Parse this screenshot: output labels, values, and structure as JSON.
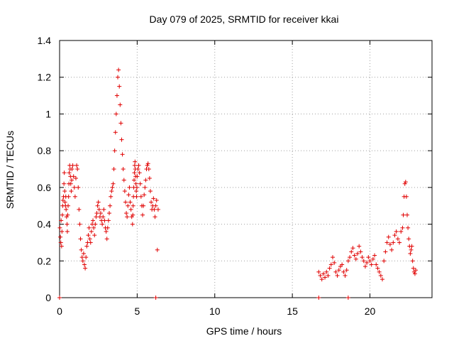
{
  "chart_data": {
    "type": "scatter",
    "title": "Day 079 of 2025, SRMTID for receiver kkai",
    "xlabel": "GPS time / hours",
    "ylabel": "SRMTID / TECUs",
    "xlim": [
      0,
      24
    ],
    "ylim": [
      0,
      1.4
    ],
    "xticks": [
      0,
      5,
      10,
      15,
      20
    ],
    "xtick_labels": [
      "0",
      "5",
      "10",
      "15",
      "20"
    ],
    "yticks": [
      0,
      0.2,
      0.4,
      0.6,
      0.8,
      1.0,
      1.2,
      1.4
    ],
    "ytick_labels": [
      "0",
      "0.2",
      "0.4",
      "0.6",
      "0.8",
      "1",
      "1.2",
      "1.4"
    ],
    "grid": true,
    "marker": "+",
    "color": "#e00000",
    "series": [
      {
        "name": "SRMTID",
        "x": [
          0.02,
          0.05,
          0.08,
          0.1,
          0.13,
          0.15,
          0.18,
          0.2,
          0.22,
          0.25,
          0.28,
          0.3,
          0.33,
          0.35,
          0.38,
          0.4,
          0.42,
          0.45,
          0.48,
          0.5,
          0.52,
          0.55,
          0.58,
          0.6,
          0.62,
          0.65,
          0.68,
          0.7,
          0.72,
          0.75,
          0.78,
          0.8,
          0.85,
          0.9,
          0.95,
          1.0,
          1.05,
          1.1,
          1.15,
          1.2,
          1.25,
          1.3,
          1.35,
          1.4,
          1.45,
          1.5,
          1.55,
          1.6,
          1.65,
          1.7,
          1.75,
          1.8,
          1.85,
          1.9,
          1.95,
          2.0,
          2.05,
          2.1,
          2.15,
          2.2,
          2.25,
          2.3,
          2.35,
          2.4,
          2.45,
          2.5,
          2.55,
          2.6,
          2.65,
          2.7,
          2.75,
          2.8,
          2.85,
          2.9,
          2.95,
          3.0,
          3.05,
          3.1,
          3.15,
          3.2,
          3.25,
          3.3,
          3.35,
          3.4,
          3.45,
          3.5,
          3.55,
          3.6,
          3.65,
          3.7,
          3.75,
          3.8,
          3.85,
          3.9,
          3.95,
          4.0,
          4.05,
          4.1,
          4.15,
          4.2,
          4.25,
          4.3,
          4.35,
          4.4,
          4.45,
          4.5,
          4.55,
          4.6,
          4.65,
          4.7,
          4.72,
          4.74,
          4.76,
          4.78,
          4.8,
          4.82,
          4.84,
          4.86,
          4.88,
          4.9,
          4.92,
          4.94,
          4.96,
          4.98,
          5.0,
          5.05,
          5.1,
          5.15,
          5.2,
          5.25,
          5.3,
          5.35,
          5.4,
          5.45,
          5.5,
          5.55,
          5.6,
          5.65,
          5.7,
          5.75,
          5.8,
          5.85,
          5.9,
          5.95,
          6.0,
          6.05,
          6.1,
          6.15,
          6.2,
          6.25,
          6.3,
          6.35,
          16.7,
          16.8,
          16.9,
          17.0,
          17.1,
          17.2,
          17.3,
          17.4,
          17.5,
          17.6,
          17.7,
          17.8,
          17.9,
          18.0,
          18.1,
          18.2,
          18.3,
          18.4,
          18.5,
          18.6,
          18.7,
          18.8,
          18.9,
          19.0,
          19.1,
          19.2,
          19.3,
          19.4,
          19.5,
          19.6,
          19.7,
          19.8,
          19.9,
          20.0,
          20.1,
          20.2,
          20.3,
          20.4,
          20.5,
          20.6,
          20.7,
          20.8,
          20.9,
          21.0,
          21.1,
          21.2,
          21.3,
          21.4,
          21.5,
          21.6,
          21.7,
          21.8,
          21.9,
          22.0,
          22.1,
          22.15,
          22.2,
          22.25,
          22.3,
          22.35,
          22.4,
          22.45,
          22.5,
          22.55,
          22.6,
          22.65,
          22.7,
          22.75,
          22.8,
          22.85,
          22.9,
          22.95,
          0.0,
          6.2,
          16.7,
          18.6
        ],
        "y": [
          0.38,
          0.33,
          0.3,
          0.42,
          0.28,
          0.36,
          0.45,
          0.5,
          0.53,
          0.55,
          0.62,
          0.68,
          0.58,
          0.52,
          0.5,
          0.55,
          0.48,
          0.44,
          0.4,
          0.36,
          0.45,
          0.5,
          0.55,
          0.62,
          0.68,
          0.72,
          0.7,
          0.66,
          0.62,
          0.58,
          0.64,
          0.7,
          0.72,
          0.66,
          0.6,
          0.55,
          0.65,
          0.72,
          0.7,
          0.6,
          0.48,
          0.4,
          0.32,
          0.26,
          0.22,
          0.2,
          0.24,
          0.18,
          0.16,
          0.22,
          0.28,
          0.3,
          0.34,
          0.38,
          0.32,
          0.3,
          0.36,
          0.4,
          0.42,
          0.38,
          0.34,
          0.4,
          0.44,
          0.46,
          0.5,
          0.52,
          0.48,
          0.44,
          0.46,
          0.42,
          0.4,
          0.44,
          0.48,
          0.42,
          0.38,
          0.36,
          0.32,
          0.38,
          0.42,
          0.46,
          0.5,
          0.55,
          0.58,
          0.6,
          0.62,
          0.7,
          0.8,
          0.9,
          1.0,
          1.1,
          1.2,
          1.24,
          1.15,
          1.05,
          0.95,
          0.86,
          0.78,
          0.7,
          0.64,
          0.58,
          0.52,
          0.46,
          0.44,
          0.5,
          0.56,
          0.6,
          0.52,
          0.48,
          0.44,
          0.4,
          0.45,
          0.5,
          0.55,
          0.6,
          0.64,
          0.68,
          0.72,
          0.74,
          0.7,
          0.66,
          0.62,
          0.58,
          0.55,
          0.6,
          0.66,
          0.7,
          0.72,
          0.68,
          0.62,
          0.55,
          0.5,
          0.45,
          0.5,
          0.56,
          0.6,
          0.64,
          0.7,
          0.72,
          0.73,
          0.7,
          0.65,
          0.58,
          0.52,
          0.48,
          0.5,
          0.54,
          0.48,
          0.44,
          0.5,
          0.53,
          0.26,
          0.48,
          0.14,
          0.12,
          0.1,
          0.13,
          0.11,
          0.14,
          0.12,
          0.16,
          0.18,
          0.22,
          0.19,
          0.14,
          0.12,
          0.15,
          0.17,
          0.18,
          0.14,
          0.12,
          0.15,
          0.2,
          0.22,
          0.25,
          0.27,
          0.23,
          0.21,
          0.24,
          0.28,
          0.25,
          0.22,
          0.2,
          0.17,
          0.19,
          0.22,
          0.2,
          0.18,
          0.21,
          0.23,
          0.18,
          0.16,
          0.14,
          0.12,
          0.1,
          0.2,
          0.25,
          0.3,
          0.33,
          0.29,
          0.26,
          0.3,
          0.34,
          0.36,
          0.32,
          0.3,
          0.36,
          0.38,
          0.45,
          0.55,
          0.62,
          0.63,
          0.55,
          0.45,
          0.38,
          0.32,
          0.28,
          0.24,
          0.26,
          0.28,
          0.2,
          0.16,
          0.14,
          0.13,
          0.15,
          0.0,
          0.0,
          0.0,
          0.0
        ]
      }
    ]
  }
}
